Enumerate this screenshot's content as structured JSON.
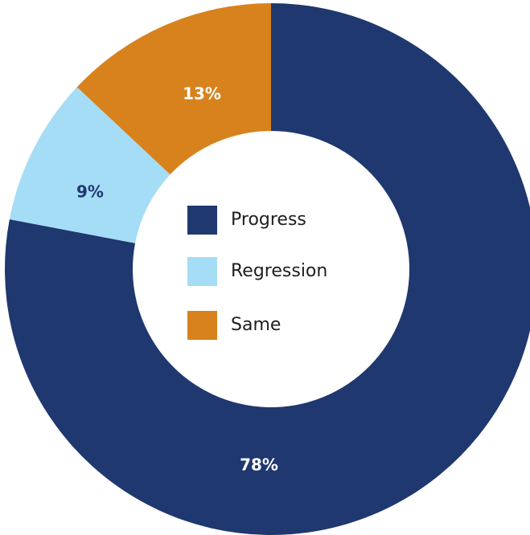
{
  "chart_data": {
    "type": "donut",
    "categories": [
      "Progress",
      "Regression",
      "Same"
    ],
    "values": [
      78,
      9,
      13
    ],
    "value_labels": [
      "78%",
      "9%",
      "13%"
    ],
    "colors": [
      "#1f386f",
      "#a5dcf6",
      "#d7821d"
    ]
  }
}
